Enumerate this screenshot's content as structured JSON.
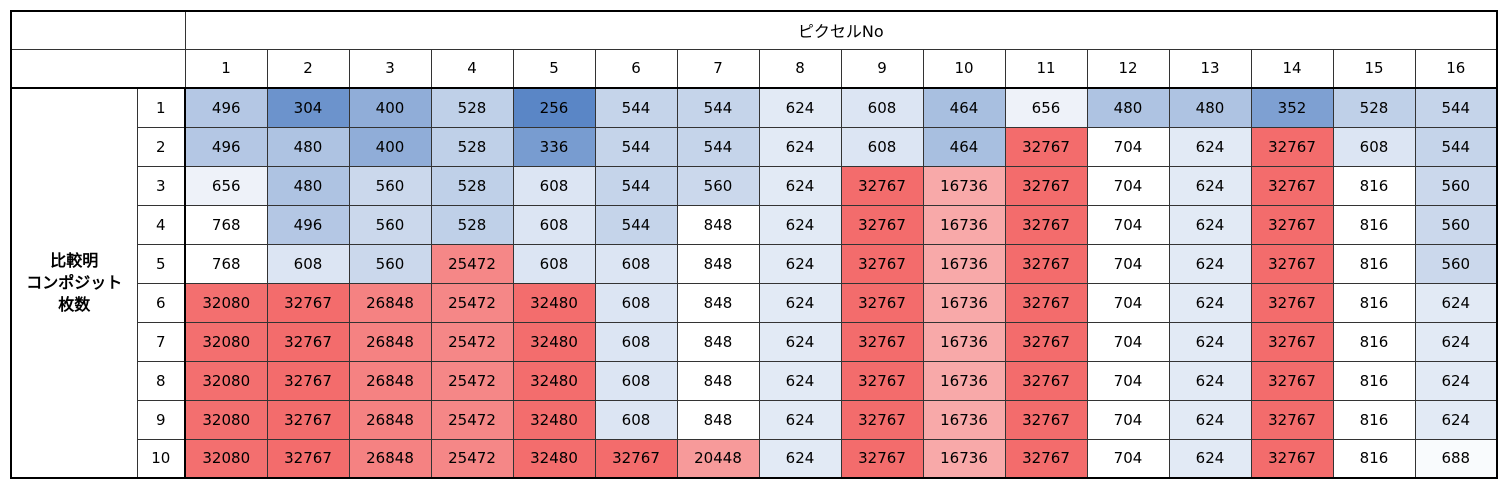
{
  "header": {
    "title": "ピクセルNo",
    "columns": [
      "1",
      "2",
      "3",
      "4",
      "5",
      "6",
      "7",
      "8",
      "9",
      "10",
      "11",
      "12",
      "13",
      "14",
      "15",
      "16"
    ]
  },
  "row_group_label": [
    "比較明",
    "コンポジット",
    "枚数"
  ],
  "rows": [
    {
      "label": "1",
      "values": [
        "496",
        "304",
        "400",
        "528",
        "256",
        "544",
        "544",
        "624",
        "608",
        "464",
        "656",
        "480",
        "480",
        "352",
        "528",
        "544"
      ]
    },
    {
      "label": "2",
      "values": [
        "496",
        "480",
        "400",
        "528",
        "336",
        "544",
        "544",
        "624",
        "608",
        "464",
        "32767",
        "704",
        "624",
        "32767",
        "608",
        "544"
      ]
    },
    {
      "label": "3",
      "values": [
        "656",
        "480",
        "560",
        "528",
        "608",
        "544",
        "560",
        "624",
        "32767",
        "16736",
        "32767",
        "704",
        "624",
        "32767",
        "816",
        "560"
      ]
    },
    {
      "label": "4",
      "values": [
        "768",
        "496",
        "560",
        "528",
        "608",
        "544",
        "848",
        "624",
        "32767",
        "16736",
        "32767",
        "704",
        "624",
        "32767",
        "816",
        "560"
      ]
    },
    {
      "label": "5",
      "values": [
        "768",
        "608",
        "560",
        "25472",
        "608",
        "608",
        "848",
        "624",
        "32767",
        "16736",
        "32767",
        "704",
        "624",
        "32767",
        "816",
        "560"
      ]
    },
    {
      "label": "6",
      "values": [
        "32080",
        "32767",
        "26848",
        "25472",
        "32480",
        "608",
        "848",
        "624",
        "32767",
        "16736",
        "32767",
        "704",
        "624",
        "32767",
        "816",
        "624"
      ]
    },
    {
      "label": "7",
      "values": [
        "32080",
        "32767",
        "26848",
        "25472",
        "32480",
        "608",
        "848",
        "624",
        "32767",
        "16736",
        "32767",
        "704",
        "624",
        "32767",
        "816",
        "624"
      ]
    },
    {
      "label": "8",
      "values": [
        "32080",
        "32767",
        "26848",
        "25472",
        "32480",
        "608",
        "848",
        "624",
        "32767",
        "16736",
        "32767",
        "704",
        "624",
        "32767",
        "816",
        "624"
      ]
    },
    {
      "label": "9",
      "values": [
        "32080",
        "32767",
        "26848",
        "25472",
        "32480",
        "608",
        "848",
        "624",
        "32767",
        "16736",
        "32767",
        "704",
        "624",
        "32767",
        "816",
        "624"
      ]
    },
    {
      "label": "10",
      "values": [
        "32080",
        "32767",
        "26848",
        "25472",
        "32480",
        "32767",
        "20448",
        "624",
        "32767",
        "16736",
        "32767",
        "704",
        "624",
        "32767",
        "816",
        "688"
      ]
    }
  ],
  "colors": {
    "blue_low": "#5a86c6",
    "blue_mid": "#aec3e2",
    "neutral": "#ffffff",
    "red_mid": "#f8a8a8",
    "red_high": "#f36c6c"
  }
}
